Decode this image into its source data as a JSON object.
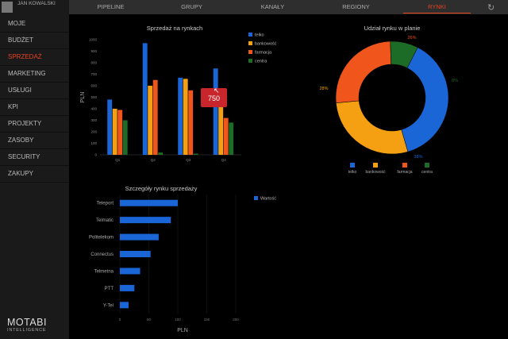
{
  "user": {
    "name": "JAN KOWALSKI"
  },
  "sidebar": {
    "items": [
      {
        "label": "MOJE"
      },
      {
        "label": "BUDŻET"
      },
      {
        "label": "SPRZEDAŻ",
        "active": true
      },
      {
        "label": "MARKETING"
      },
      {
        "label": "USŁUGI"
      },
      {
        "label": "KPI"
      },
      {
        "label": "PROJEKTY"
      },
      {
        "label": "ZASOBY"
      },
      {
        "label": "SECURITY"
      },
      {
        "label": "ZAKUPY"
      }
    ]
  },
  "logo": {
    "name": "MOTABI",
    "sub": "INTELLIGENCE"
  },
  "topnav": {
    "tabs": [
      {
        "label": "PIPELINE"
      },
      {
        "label": "GRUPY"
      },
      {
        "label": "KANAŁY"
      },
      {
        "label": "REGIONY"
      },
      {
        "label": "RYNKI",
        "active": true
      }
    ],
    "refresh_icon": "refresh-icon"
  },
  "colors": {
    "accent": "#e8421f",
    "telko": "#1a66d6",
    "bankowosc": "#f5a013",
    "farmacja": "#f0551c",
    "centra": "#1c6b26"
  },
  "chart_data": [
    {
      "type": "bar",
      "title": "Sprzedaż na rynkach",
      "ylabel": "PLN",
      "xlabel": "",
      "categories": [
        "Q1",
        "Q2",
        "Q3",
        "Q4"
      ],
      "yticks": [
        "0",
        "100",
        "200",
        "300",
        "400",
        "500",
        "600",
        "700",
        "800",
        "900",
        "1000"
      ],
      "ylim": [
        0,
        1000
      ],
      "series": [
        {
          "name": "telko",
          "values": [
            480,
            970,
            670,
            750
          ]
        },
        {
          "name": "bankowość",
          "values": [
            400,
            600,
            660,
            460
          ]
        },
        {
          "name": "farmacja",
          "values": [
            390,
            650,
            560,
            320
          ]
        },
        {
          "name": "centra",
          "values": [
            300,
            20,
            10,
            280
          ]
        }
      ],
      "tooltip": "750",
      "legend": "right"
    },
    {
      "type": "pie",
      "title": "Udział rynku w planie",
      "slices": [
        {
          "name": "telko",
          "value": 38,
          "label": "38%"
        },
        {
          "name": "bankowość",
          "value": 28,
          "label": "28%"
        },
        {
          "name": "farmacja",
          "value": 26,
          "label": "26%"
        },
        {
          "name": "centra",
          "value": 8,
          "label": "8%"
        }
      ],
      "legend": "bottom"
    },
    {
      "type": "bar",
      "orientation": "horizontal",
      "title": "Szczegóły rynku sprzedaży",
      "xlabel": "PLN",
      "categories": [
        "Teleport",
        "Telmatic",
        "Politelekom",
        "Connectus",
        "Telmetna",
        "PTT",
        "Y-Tel"
      ],
      "series": [
        {
          "name": "Wartość",
          "values": [
            100,
            88,
            67,
            53,
            35,
            25,
            15
          ]
        }
      ],
      "xticks": [
        "0",
        "50",
        "100",
        "150",
        "200"
      ],
      "xlim": [
        0,
        200
      ],
      "legend": "right"
    }
  ]
}
